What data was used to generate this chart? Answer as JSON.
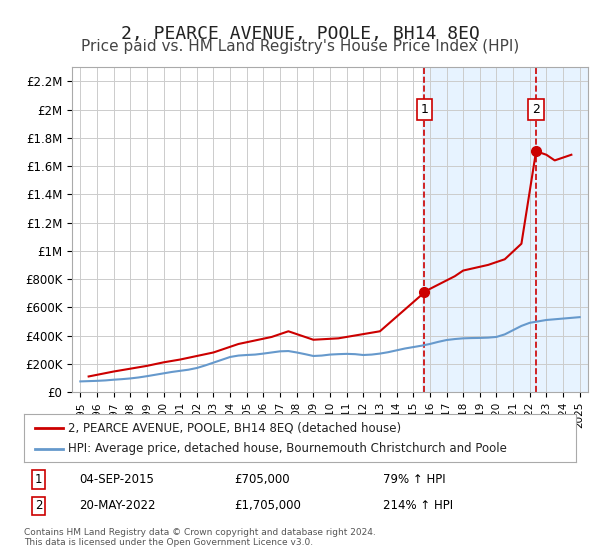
{
  "title": "2, PEARCE AVENUE, POOLE, BH14 8EQ",
  "subtitle": "Price paid vs. HM Land Registry's House Price Index (HPI)",
  "title_fontsize": 13,
  "subtitle_fontsize": 11,
  "background_color": "#ffffff",
  "plot_bg_color": "#ffffff",
  "grid_color": "#cccccc",
  "highlight_bg_color": "#ddeeff",
  "hpi_years": [
    1995,
    1995.5,
    1996,
    1996.5,
    1997,
    1997.5,
    1998,
    1998.5,
    1999,
    1999.5,
    2000,
    2000.5,
    2001,
    2001.5,
    2002,
    2002.5,
    2003,
    2003.5,
    2004,
    2004.5,
    2005,
    2005.5,
    2006,
    2006.5,
    2007,
    2007.5,
    2008,
    2008.5,
    2009,
    2009.5,
    2010,
    2010.5,
    2011,
    2011.5,
    2012,
    2012.5,
    2013,
    2013.5,
    2014,
    2014.5,
    2015,
    2015.5,
    2016,
    2016.5,
    2017,
    2017.5,
    2018,
    2018.5,
    2019,
    2019.5,
    2020,
    2020.5,
    2021,
    2021.5,
    2022,
    2022.5,
    2023,
    2023.5,
    2024,
    2024.5,
    2025
  ],
  "hpi_values": [
    75000,
    77000,
    79000,
    82000,
    87000,
    91000,
    96000,
    103000,
    112000,
    122000,
    132000,
    142000,
    150000,
    158000,
    170000,
    188000,
    208000,
    228000,
    248000,
    258000,
    262000,
    265000,
    272000,
    280000,
    288000,
    290000,
    280000,
    268000,
    255000,
    258000,
    265000,
    268000,
    270000,
    268000,
    262000,
    265000,
    272000,
    282000,
    295000,
    308000,
    318000,
    328000,
    340000,
    355000,
    368000,
    375000,
    380000,
    382000,
    383000,
    385000,
    390000,
    408000,
    438000,
    468000,
    490000,
    500000,
    510000,
    515000,
    520000,
    525000,
    530000
  ],
  "property_years": [
    1995.5,
    1997.0,
    1998.0,
    1999.0,
    2000.0,
    2001.0,
    2002.0,
    2003.0,
    2004.5,
    2006.5,
    2007.5,
    2009.0,
    2010.5,
    2013.0,
    2015.67,
    2016.0,
    2017.5,
    2018.0,
    2019.5,
    2020.5,
    2021.5,
    2022.38,
    2023.0,
    2023.5,
    2024.0,
    2024.5
  ],
  "property_values": [
    110000,
    145000,
    165000,
    185000,
    210000,
    230000,
    255000,
    280000,
    340000,
    390000,
    430000,
    370000,
    380000,
    430000,
    705000,
    730000,
    820000,
    860000,
    900000,
    940000,
    1050000,
    1705000,
    1680000,
    1640000,
    1660000,
    1680000
  ],
  "sale1_year": 2015.67,
  "sale1_value": 705000,
  "sale1_label": "1",
  "sale2_year": 2022.38,
  "sale2_value": 1705000,
  "sale2_label": "2",
  "highlight_x_start": 2015.5,
  "highlight_x_end": 2025.5,
  "ylim_min": 0,
  "ylim_max": 2300000,
  "ytick_values": [
    0,
    200000,
    400000,
    600000,
    800000,
    1000000,
    1200000,
    1400000,
    1600000,
    1800000,
    2000000,
    2200000
  ],
  "ytick_labels": [
    "£0",
    "£200K",
    "£400K",
    "£600K",
    "£800K",
    "£1M",
    "£1.2M",
    "£1.4M",
    "£1.6M",
    "£1.8M",
    "£2M",
    "£2.2M"
  ],
  "xlim_min": 1994.5,
  "xlim_max": 2025.5,
  "xtick_values": [
    1995,
    1996,
    1997,
    1998,
    1999,
    2000,
    2001,
    2002,
    2003,
    2004,
    2005,
    2006,
    2007,
    2008,
    2009,
    2010,
    2011,
    2012,
    2013,
    2014,
    2015,
    2016,
    2017,
    2018,
    2019,
    2020,
    2021,
    2022,
    2023,
    2024,
    2025
  ],
  "xtick_labels": [
    "1995",
    "1996",
    "1997",
    "1998",
    "1999",
    "2000",
    "2001",
    "2002",
    "2003",
    "2004",
    "2005",
    "2006",
    "2007",
    "2008",
    "2009",
    "2010",
    "2011",
    "2012",
    "2013",
    "2014",
    "2015",
    "2016",
    "2017",
    "2018",
    "2019",
    "2020",
    "2021",
    "2022",
    "2023",
    "2024",
    "2025"
  ],
  "property_line_color": "#cc0000",
  "hpi_line_color": "#6699cc",
  "sale_dot_color": "#cc0000",
  "sale_box_color": "#cc0000",
  "dashed_line_color": "#cc0000",
  "legend_property": "2, PEARCE AVENUE, POOLE, BH14 8EQ (detached house)",
  "legend_hpi": "HPI: Average price, detached house, Bournemouth Christchurch and Poole",
  "annotation1_label": "1",
  "annotation1_date": "04-SEP-2015",
  "annotation1_price": "£705,000",
  "annotation1_pct": "79% ↑ HPI",
  "annotation2_label": "2",
  "annotation2_date": "20-MAY-2022",
  "annotation2_price": "£1,705,000",
  "annotation2_pct": "214% ↑ HPI",
  "footer": "Contains HM Land Registry data © Crown copyright and database right 2024.\nThis data is licensed under the Open Government Licence v3.0."
}
